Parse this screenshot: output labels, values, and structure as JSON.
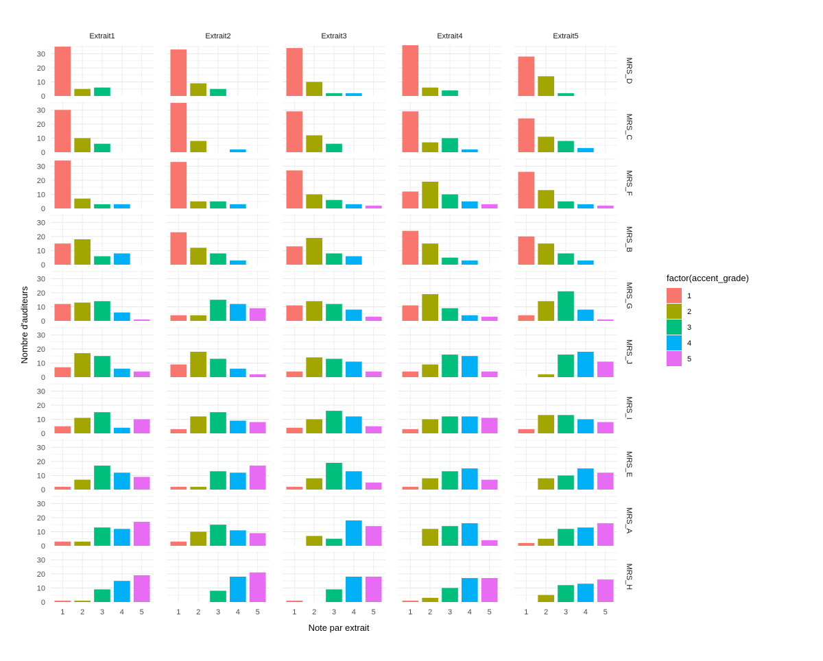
{
  "chart_data": {
    "type": "bar",
    "xlabel": "Note par extrait",
    "ylabel": "Nombre d'auditeurs",
    "ylim": [
      0,
      36
    ],
    "yticks": [
      0,
      10,
      20,
      30
    ],
    "categories": [
      "1",
      "2",
      "3",
      "4",
      "5"
    ],
    "columns": [
      "Extrait1",
      "Extrait2",
      "Extrait3",
      "Extrait4",
      "Extrait5"
    ],
    "rows": [
      "MRS_D",
      "MRS_C",
      "MRS_F",
      "MRS_B",
      "MRS_G",
      "MRS_J",
      "MRS_I",
      "MRS_E",
      "MRS_A",
      "MRS_H"
    ],
    "legend": {
      "title": "factor(accent_grade)",
      "position": "right",
      "items": [
        {
          "label": "1",
          "color": "#F8766D"
        },
        {
          "label": "2",
          "color": "#A3A500"
        },
        {
          "label": "3",
          "color": "#00BF7D"
        },
        {
          "label": "4",
          "color": "#00B0F6"
        },
        {
          "label": "5",
          "color": "#E76BF3"
        }
      ]
    },
    "grid": true,
    "values": [
      [
        [
          35,
          5,
          6,
          0,
          0
        ],
        [
          33,
          9,
          5,
          0,
          0
        ],
        [
          34,
          10,
          2,
          2,
          0
        ],
        [
          36,
          6,
          4,
          0,
          0
        ],
        [
          28,
          14,
          2,
          0,
          0
        ]
      ],
      [
        [
          30,
          10,
          6,
          0,
          0
        ],
        [
          35,
          8,
          0,
          2,
          0
        ],
        [
          29,
          12,
          6,
          0,
          0
        ],
        [
          29,
          7,
          10,
          2,
          0
        ],
        [
          24,
          11,
          8,
          3,
          0
        ]
      ],
      [
        [
          34,
          7,
          3,
          3,
          0
        ],
        [
          33,
          5,
          5,
          3,
          0
        ],
        [
          27,
          10,
          6,
          3,
          2
        ],
        [
          12,
          19,
          10,
          5,
          3
        ],
        [
          26,
          13,
          5,
          3,
          2
        ]
      ],
      [
        [
          15,
          18,
          6,
          8,
          0
        ],
        [
          23,
          12,
          8,
          3,
          0
        ],
        [
          13,
          19,
          8,
          6,
          0
        ],
        [
          24,
          15,
          5,
          3,
          0
        ],
        [
          20,
          15,
          8,
          3,
          0
        ]
      ],
      [
        [
          12,
          13,
          14,
          6,
          1
        ],
        [
          4,
          4,
          15,
          12,
          9
        ],
        [
          11,
          14,
          12,
          8,
          3
        ],
        [
          11,
          19,
          9,
          4,
          3
        ],
        [
          4,
          14,
          21,
          8,
          1
        ]
      ],
      [
        [
          7,
          17,
          15,
          6,
          4
        ],
        [
          9,
          18,
          13,
          6,
          2
        ],
        [
          4,
          14,
          13,
          11,
          4
        ],
        [
          4,
          9,
          16,
          15,
          4
        ],
        [
          0,
          2,
          16,
          18,
          11
        ]
      ],
      [
        [
          5,
          11,
          15,
          4,
          10
        ],
        [
          3,
          12,
          15,
          9,
          8
        ],
        [
          4,
          10,
          16,
          12,
          5
        ],
        [
          3,
          10,
          12,
          12,
          11
        ],
        [
          3,
          13,
          13,
          10,
          8
        ]
      ],
      [
        [
          2,
          7,
          17,
          12,
          9
        ],
        [
          2,
          2,
          13,
          12,
          17
        ],
        [
          2,
          8,
          19,
          13,
          5
        ],
        [
          2,
          8,
          13,
          15,
          7
        ],
        [
          0,
          8,
          10,
          15,
          12
        ]
      ],
      [
        [
          3,
          3,
          13,
          12,
          17
        ],
        [
          3,
          10,
          15,
          11,
          9
        ],
        [
          0,
          7,
          5,
          18,
          14
        ],
        [
          0,
          12,
          14,
          16,
          4
        ],
        [
          2,
          5,
          12,
          13,
          16
        ]
      ],
      [
        [
          1,
          1,
          9,
          15,
          19
        ],
        [
          0,
          0,
          8,
          18,
          21
        ],
        [
          1,
          0,
          9,
          18,
          18
        ],
        [
          1,
          3,
          10,
          17,
          17
        ],
        [
          0,
          5,
          12,
          13,
          16
        ]
      ]
    ]
  }
}
